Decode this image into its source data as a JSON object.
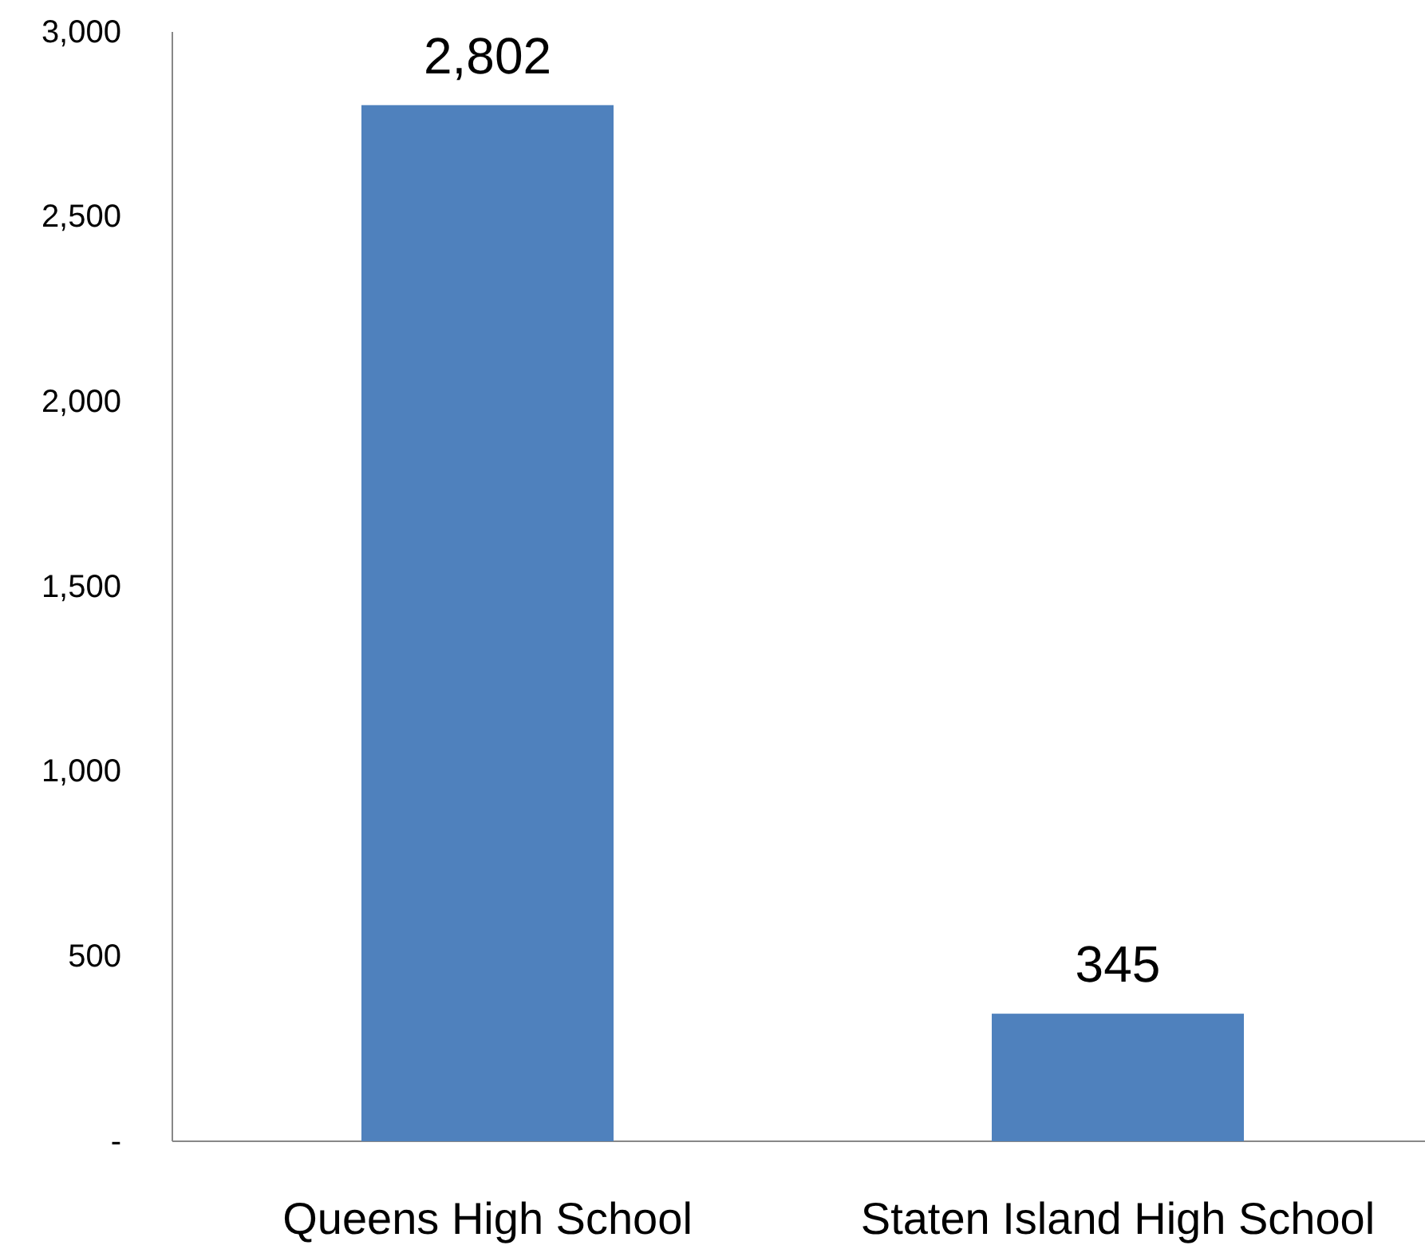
{
  "chart_data": {
    "type": "bar",
    "categories": [
      "Queens High School",
      "Staten Island High School"
    ],
    "values": [
      2802,
      345
    ],
    "color": "#4f81bd",
    "value_labels": [
      "2,802",
      "345"
    ],
    "ylim": [
      0,
      3000
    ],
    "yticks": [
      {
        "value": 0,
        "label": "-"
      },
      500,
      {
        "value": 1000,
        "label": "1,000"
      },
      {
        "value": 1500,
        "label": "1,500"
      },
      {
        "value": 2000,
        "label": "2,000"
      },
      {
        "value": 2500,
        "label": "2,500"
      },
      {
        "value": 3000,
        "label": "3,000"
      }
    ],
    "grid": false
  }
}
